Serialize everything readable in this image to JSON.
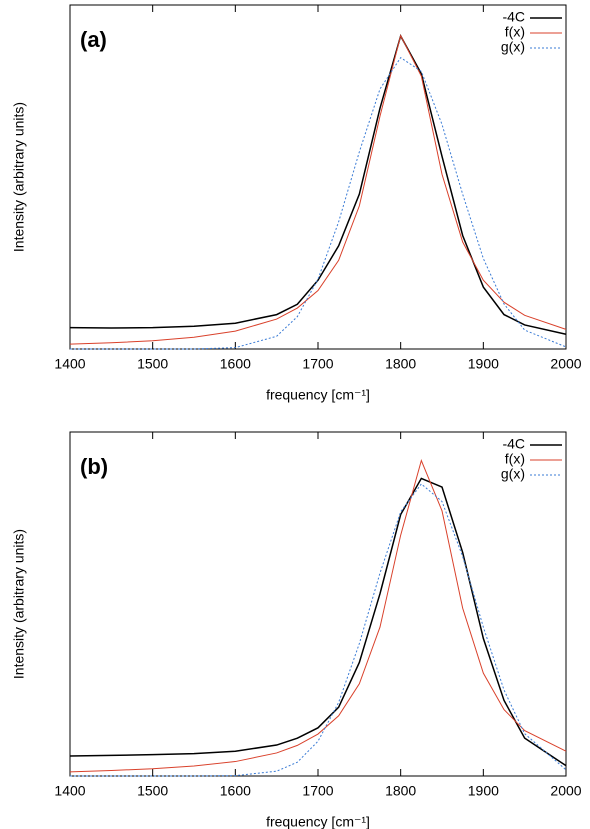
{
  "chart_data": [
    {
      "type": "line",
      "panel_label": "(a)",
      "x_label": "frequency [cm⁻¹]",
      "y_label": "Intensity (arbitrary units)",
      "x": [
        1400,
        1450,
        1500,
        1550,
        1600,
        1650,
        1675,
        1700,
        1725,
        1750,
        1775,
        1800,
        1825,
        1850,
        1875,
        1900,
        1925,
        1950,
        2000
      ],
      "xlim": [
        1400,
        2000
      ],
      "xticks": [
        1400,
        1500,
        1600,
        1700,
        1800,
        1900,
        2000
      ],
      "ylim": [
        0,
        1
      ],
      "legend": "upper right",
      "series": [
        {
          "name": "-4C",
          "color": "#000000",
          "line_style": "solid",
          "values": [
            0.062,
            0.061,
            0.062,
            0.066,
            0.075,
            0.1,
            0.13,
            0.2,
            0.3,
            0.45,
            0.7,
            0.91,
            0.8,
            0.56,
            0.33,
            0.18,
            0.1,
            0.07,
            0.043
          ]
        },
        {
          "name": "f(x)",
          "color": "#d9412b",
          "line_style": "solid",
          "values": [
            0.014,
            0.018,
            0.024,
            0.034,
            0.052,
            0.087,
            0.119,
            0.17,
            0.258,
            0.416,
            0.677,
            0.911,
            0.793,
            0.508,
            0.311,
            0.2,
            0.136,
            0.098,
            0.057
          ]
        },
        {
          "name": "g(x)",
          "color": "#3a7bd5",
          "line_style": "dotted",
          "values": [
            0,
            0,
            0,
            0,
            0.004,
            0.037,
            0.094,
            0.203,
            0.37,
            0.573,
            0.756,
            0.847,
            0.807,
            0.653,
            0.45,
            0.263,
            0.131,
            0.055,
            0.006
          ]
        }
      ]
    },
    {
      "type": "line",
      "panel_label": "(b)",
      "x_label": "frequency [cm⁻¹]",
      "y_label": "Intensity (arbitrary units)",
      "x": [
        1400,
        1450,
        1500,
        1550,
        1600,
        1650,
        1675,
        1700,
        1725,
        1750,
        1775,
        1800,
        1825,
        1850,
        1875,
        1900,
        1925,
        1950,
        2000
      ],
      "xlim": [
        1400,
        2000
      ],
      "xticks": [
        1400,
        1500,
        1600,
        1700,
        1800,
        1900,
        2000
      ],
      "ylim": [
        0,
        1
      ],
      "legend": "upper right",
      "series": [
        {
          "name": "-4C",
          "color": "#000000",
          "line_style": "solid",
          "values": [
            0.058,
            0.06,
            0.062,
            0.065,
            0.072,
            0.09,
            0.11,
            0.14,
            0.2,
            0.33,
            0.53,
            0.76,
            0.865,
            0.84,
            0.65,
            0.4,
            0.22,
            0.11,
            0.03
          ]
        },
        {
          "name": "f(x)",
          "color": "#d9412b",
          "line_style": "solid",
          "values": [
            0.012,
            0.016,
            0.021,
            0.029,
            0.042,
            0.067,
            0.089,
            0.122,
            0.175,
            0.268,
            0.433,
            0.7,
            0.917,
            0.771,
            0.488,
            0.299,
            0.193,
            0.132,
            0.072
          ]
        },
        {
          "name": "g(x)",
          "color": "#3a7bd5",
          "line_style": "dotted",
          "values": [
            0,
            0,
            0,
            0,
            0.001,
            0.014,
            0.04,
            0.101,
            0.214,
            0.385,
            0.59,
            0.768,
            0.849,
            0.798,
            0.638,
            0.433,
            0.25,
            0.123,
            0.018
          ]
        }
      ]
    }
  ]
}
